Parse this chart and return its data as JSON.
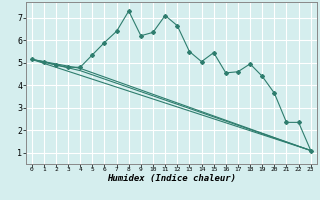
{
  "xlabel": "Humidex (Indice chaleur)",
  "bg_color": "#d5eeee",
  "line_color": "#2e7d6e",
  "grid_color": "#ffffff",
  "series1": {
    "x": [
      0,
      1,
      2,
      3,
      4,
      5,
      6,
      7,
      8,
      9,
      10,
      11,
      12,
      13,
      14,
      15,
      16,
      17,
      18,
      19,
      20,
      21,
      22,
      23
    ],
    "y": [
      5.15,
      5.05,
      4.9,
      4.8,
      4.8,
      5.35,
      5.9,
      6.4,
      7.3,
      6.2,
      6.35,
      7.1,
      6.65,
      5.5,
      5.05,
      5.45,
      4.55,
      4.6,
      4.95,
      4.4,
      3.65,
      2.35,
      2.35,
      1.1
    ]
  },
  "line2": {
    "x": [
      0,
      23
    ],
    "y": [
      5.15,
      1.1
    ]
  },
  "line3": {
    "x": [
      0,
      4,
      23
    ],
    "y": [
      5.15,
      4.75,
      1.1
    ]
  },
  "line4": {
    "x": [
      0,
      4,
      23
    ],
    "y": [
      5.15,
      4.65,
      1.1
    ]
  },
  "ylim": [
    0.5,
    7.7
  ],
  "xlim": [
    -0.5,
    23.5
  ],
  "yticks": [
    1,
    2,
    3,
    4,
    5,
    6,
    7
  ],
  "xticks": [
    0,
    1,
    2,
    3,
    4,
    5,
    6,
    7,
    8,
    9,
    10,
    11,
    12,
    13,
    14,
    15,
    16,
    17,
    18,
    19,
    20,
    21,
    22,
    23
  ]
}
